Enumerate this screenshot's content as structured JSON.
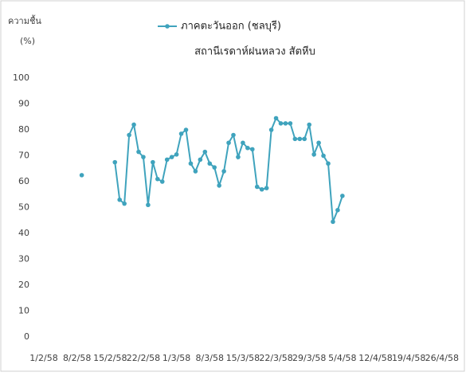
{
  "chart_data": {
    "type": "line",
    "title": "สถานีเรดาห์ฝนหลวง สัตหีบ",
    "y_label_lines": [
      "ความชื้น",
      "(%)"
    ],
    "categories": [
      "1/2/58",
      null,
      null,
      null,
      null,
      null,
      null,
      "8/2/58",
      null,
      null,
      null,
      null,
      null,
      null,
      "15/2/58",
      null,
      null,
      null,
      null,
      null,
      null,
      "22/2/58",
      null,
      null,
      null,
      null,
      null,
      null,
      "1/3/58",
      null,
      null,
      null,
      null,
      null,
      null,
      "8/3/58",
      null,
      null,
      null,
      null,
      null,
      null,
      "15/3/58",
      null,
      null,
      null,
      null,
      null,
      null,
      "22/3/58",
      null,
      null,
      null,
      null,
      null,
      null,
      "29/3/58",
      null,
      null,
      null,
      null,
      null,
      null,
      "5/4/58",
      null,
      null,
      null,
      null,
      null,
      null,
      "12/4/58",
      null,
      null,
      null,
      null,
      null,
      null,
      "19/4/58",
      null,
      null,
      null,
      null,
      null,
      null,
      "26/4/58"
    ],
    "series": [
      {
        "name": "ภาคตะวันออก (ชลบุรี)",
        "color": "#3fa3bd",
        "values": [
          null,
          null,
          null,
          null,
          null,
          null,
          null,
          null,
          62.5,
          null,
          null,
          null,
          null,
          null,
          null,
          67.5,
          53,
          51.5,
          78,
          82,
          71.5,
          69.5,
          51,
          67.5,
          61,
          60,
          68.5,
          69.5,
          70.5,
          78.5,
          80,
          67,
          64,
          68.5,
          71.5,
          67,
          65.5,
          58.5,
          64,
          75,
          78,
          69.5,
          75,
          73,
          72.5,
          58,
          57,
          57.5,
          80,
          84.5,
          82.5,
          82.5,
          82.5,
          76.5,
          76.5,
          76.5,
          82,
          70.5,
          75,
          70,
          67,
          44.5,
          49,
          54.5,
          null,
          null,
          null,
          null,
          null,
          null,
          null,
          null,
          null,
          null,
          null,
          null,
          null,
          null,
          null,
          null,
          null,
          null,
          null,
          null,
          null
        ]
      }
    ],
    "ylim": [
      0,
      100
    ],
    "yticks": [
      0,
      10,
      20,
      30,
      40,
      50,
      60,
      70,
      80,
      90,
      100
    ],
    "grid": false
  }
}
